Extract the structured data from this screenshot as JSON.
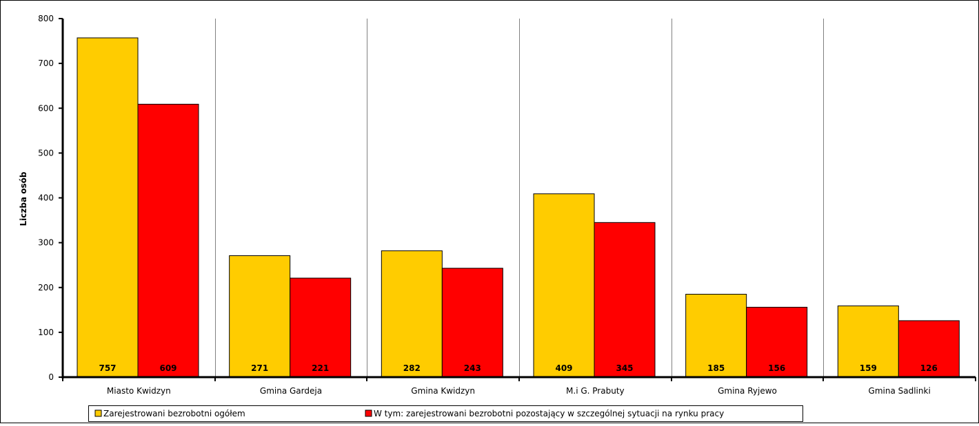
{
  "chart_data": {
    "type": "bar",
    "title": "",
    "xlabel": "",
    "ylabel": "Liczba osób",
    "ylim": [
      0,
      800
    ],
    "yticks": [
      0,
      100,
      200,
      300,
      400,
      500,
      600,
      700,
      800
    ],
    "categories": [
      "Miasto Kwidzyn",
      "Gmina Gardeja",
      "Gmina Kwidzyn",
      "M.i G. Prabuty",
      "Gmina Ryjewo",
      "Gmina Sadlinki"
    ],
    "series": [
      {
        "name": "Zarejestrowani bezrobotni ogółem",
        "color": "#FFCC00",
        "values": [
          757,
          271,
          282,
          409,
          185,
          159
        ]
      },
      {
        "name": "W tym: zarejestrowani bezrobotni pozostający w szczególnej sytuacji na rynku pracy",
        "color": "#FF0000",
        "values": [
          609,
          221,
          243,
          345,
          156,
          126
        ]
      }
    ],
    "data_labels": "inside-bottom",
    "grid": "vertical-category-separators",
    "legend_placement": "bottom"
  }
}
